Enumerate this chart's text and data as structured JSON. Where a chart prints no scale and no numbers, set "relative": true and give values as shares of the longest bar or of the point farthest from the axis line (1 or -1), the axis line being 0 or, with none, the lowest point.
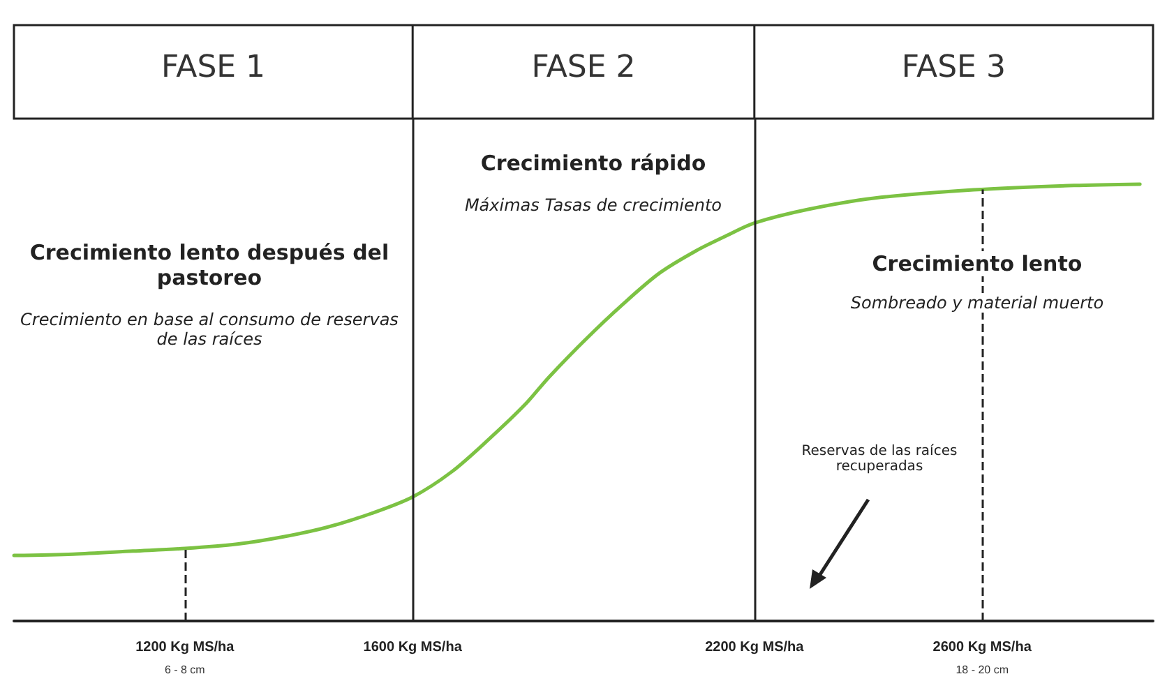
{
  "chart_data": {
    "type": "line",
    "relative": true,
    "marker": "none",
    "grid": false,
    "xlim": [
      900,
      2900
    ],
    "xticks": [
      {
        "value": 1200,
        "label": "1200 Kg MS/ha\n6 - 8 cm"
      },
      {
        "value": 1600,
        "label": "1600 Kg MS/ha"
      },
      {
        "value": 2200,
        "label": "2200 Kg MS/ha"
      },
      {
        "value": 2600,
        "label": "2600 Kg MS/ha\n18 - 20 cm"
      }
    ],
    "x": [
      900,
      1004,
      1109,
      1200,
      1292,
      1370,
      1448,
      1527,
      1600,
      1669,
      1733,
      1797,
      1840,
      1904,
      1969,
      2033,
      2097,
      2151,
      2200,
      2293,
      2410,
      2585,
      2761,
      2877
    ],
    "series": [
      {
        "color": "#7cc243",
        "values": [
          0.15,
          0.153,
          0.16,
          0.166,
          0.176,
          0.192,
          0.214,
          0.246,
          0.284,
          0.342,
          0.415,
          0.495,
          0.559,
          0.645,
          0.725,
          0.796,
          0.847,
          0.882,
          0.911,
          0.942,
          0.968,
          0.987,
          0.997,
          1.0
        ]
      }
    ],
    "ref_lines": [
      {
        "axis": "x",
        "value": 1600,
        "line_style": "solid",
        "color": "#222222"
      },
      {
        "axis": "x",
        "value": 2200,
        "line_style": "solid",
        "color": "#222222"
      },
      {
        "axis": "x",
        "value": 1200,
        "line_style": "dashed",
        "color": "#222222"
      },
      {
        "axis": "x",
        "value": 2600,
        "line_style": "dashed",
        "color": "#222222"
      }
    ],
    "annotations": [
      "FASE 1",
      "FASE 2",
      "FASE 3",
      "Crecimiento lento después del pastoreo",
      "Crecimiento en base al consumo de reservas de las raíces",
      "Crecimiento rápido",
      "Máximas Tasas de crecimiento",
      "Crecimiento lento",
      "Sombreado y material muerto",
      "Reservas de las raíces recuperadas"
    ]
  }
}
